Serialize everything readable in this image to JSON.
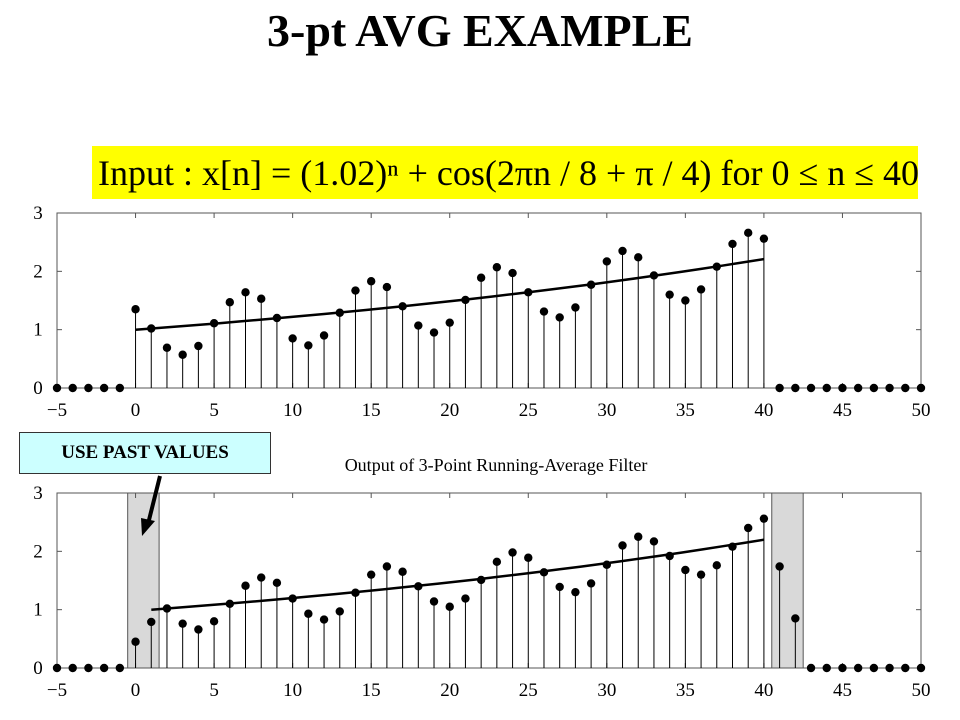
{
  "title": "3-pt AVG EXAMPLE",
  "formula": {
    "text": "Input : x[n] = (1.02)ⁿ + cos(2πn / 8 + π / 4)      for 0 ≤ n ≤ 40",
    "background": "#ffff00"
  },
  "annotation": {
    "text": "USE PAST VALUES",
    "background": "#ccffff"
  },
  "colors": {
    "stem": "#000000",
    "shade": "#d9d9d9",
    "axis": "#555555"
  },
  "chart_data": [
    {
      "type": "stem",
      "title": "",
      "xlim": [
        -5,
        50
      ],
      "ylim": [
        0,
        3
      ],
      "x_ticks": [
        "−5",
        "0",
        "5",
        "10",
        "15",
        "20",
        "25",
        "30",
        "35",
        "40",
        "45",
        "50"
      ],
      "y_ticks": [
        "0",
        "1",
        "2",
        "3"
      ],
      "series": [
        {
          "x": [
            -5,
            -4,
            -3,
            -2,
            -1,
            0,
            1,
            2,
            3,
            4,
            5,
            6,
            7,
            8,
            9,
            10,
            11,
            12,
            13,
            14,
            15,
            16,
            17,
            18,
            19,
            20,
            21,
            22,
            23,
            24,
            25,
            26,
            27,
            28,
            29,
            30,
            31,
            32,
            33,
            34,
            35,
            36,
            37,
            38,
            39,
            40,
            41,
            42,
            43,
            44,
            45,
            46,
            47,
            48,
            49,
            50
          ],
          "y": [
            0,
            0,
            0,
            0,
            0,
            1.35,
            1.02,
            0.69,
            0.57,
            0.72,
            1.11,
            1.47,
            1.64,
            1.53,
            1.2,
            0.85,
            0.73,
            0.9,
            1.29,
            1.67,
            1.83,
            1.73,
            1.4,
            1.07,
            0.95,
            1.12,
            1.51,
            1.89,
            2.07,
            1.97,
            1.64,
            1.31,
            1.21,
            1.38,
            1.77,
            2.17,
            2.35,
            2.24,
            1.93,
            1.6,
            1.5,
            1.69,
            2.08,
            2.47,
            2.66,
            2.56,
            0,
            0,
            0,
            0,
            0,
            0,
            0,
            0,
            0,
            0
          ]
        }
      ],
      "trend": {
        "x": [
          0,
          40
        ],
        "y": [
          1.0,
          2.21
        ]
      }
    },
    {
      "type": "stem",
      "title": "Output of 3-Point Running-Average Filter",
      "xlim": [
        -5,
        50
      ],
      "ylim": [
        0,
        3
      ],
      "x_ticks": [
        "−5",
        "0",
        "5",
        "10",
        "15",
        "20",
        "25",
        "30",
        "35",
        "40",
        "45",
        "50"
      ],
      "y_ticks": [
        "0",
        "1",
        "2",
        "3"
      ],
      "shaded_x": [
        [
          -0.5,
          1.5
        ],
        [
          40.5,
          42.5
        ]
      ],
      "series": [
        {
          "x": [
            -5,
            -4,
            -3,
            -2,
            -1,
            0,
            1,
            2,
            3,
            4,
            5,
            6,
            7,
            8,
            9,
            10,
            11,
            12,
            13,
            14,
            15,
            16,
            17,
            18,
            19,
            20,
            21,
            22,
            23,
            24,
            25,
            26,
            27,
            28,
            29,
            30,
            31,
            32,
            33,
            34,
            35,
            36,
            37,
            38,
            39,
            40,
            41,
            42,
            43,
            44,
            45,
            46,
            47,
            48,
            49,
            50
          ],
          "y": [
            0,
            0,
            0,
            0,
            0,
            0.45,
            0.79,
            1.02,
            0.76,
            0.66,
            0.8,
            1.1,
            1.41,
            1.55,
            1.46,
            1.19,
            0.93,
            0.83,
            0.97,
            1.29,
            1.6,
            1.74,
            1.65,
            1.4,
            1.14,
            1.05,
            1.19,
            1.51,
            1.82,
            1.98,
            1.89,
            1.64,
            1.39,
            1.3,
            1.45,
            1.77,
            2.1,
            2.25,
            2.17,
            1.92,
            1.68,
            1.6,
            1.76,
            2.08,
            2.4,
            2.56,
            1.74,
            0.85,
            0,
            0,
            0,
            0,
            0,
            0,
            0,
            0
          ]
        }
      ],
      "trend": {
        "x": [
          1,
          40
        ],
        "y": [
          1.0,
          2.2
        ]
      }
    }
  ]
}
